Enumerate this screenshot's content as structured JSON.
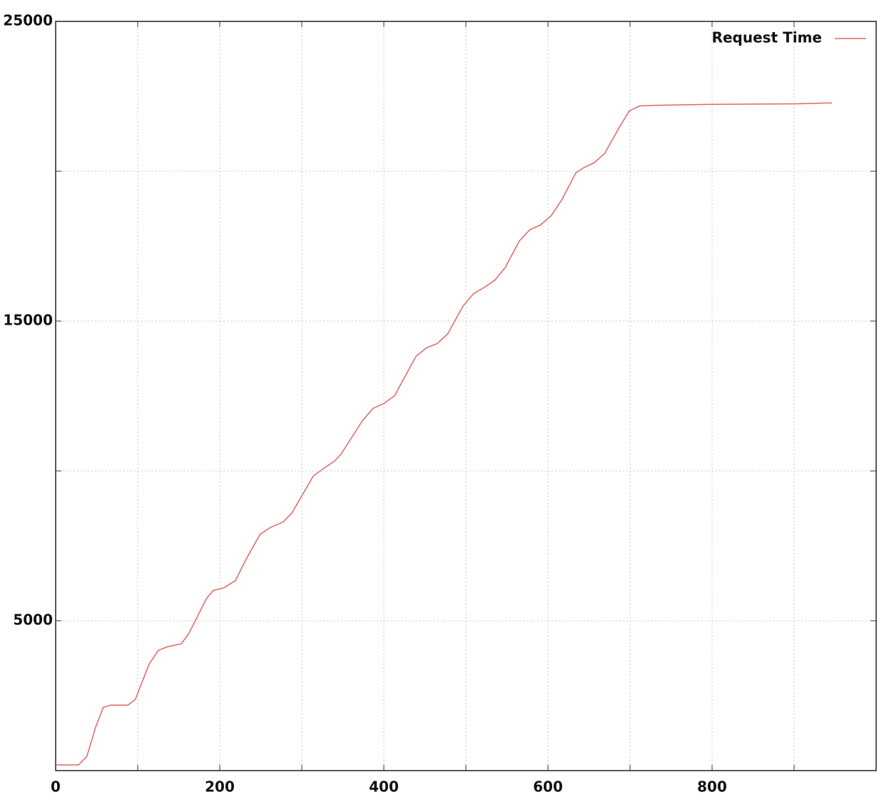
{
  "chart_data": {
    "type": "line",
    "x": [
      0,
      28,
      38,
      49,
      58,
      67,
      88,
      97,
      114,
      125,
      136,
      153,
      162,
      184,
      192,
      205,
      219,
      232,
      249,
      262,
      277,
      288,
      314,
      327,
      340,
      348,
      374,
      387,
      400,
      413,
      439,
      452,
      465,
      478,
      496,
      509,
      522,
      535,
      548,
      565,
      578,
      591,
      604,
      617,
      634,
      643,
      656,
      669,
      686,
      699,
      712,
      730,
      799,
      903,
      946
    ],
    "series": [
      {
        "name": "Request Time",
        "color": "#e06666",
        "values": [
          190,
          190,
          475,
          1470,
          2110,
          2185,
          2185,
          2375,
          3560,
          4010,
          4130,
          4230,
          4560,
          5750,
          6010,
          6100,
          6340,
          7050,
          7880,
          8120,
          8290,
          8600,
          9830,
          10090,
          10330,
          10570,
          11680,
          12090,
          12250,
          12510,
          13820,
          14110,
          14250,
          14580,
          15480,
          15910,
          16120,
          16360,
          16790,
          17670,
          18050,
          18210,
          18520,
          19050,
          19950,
          20110,
          20280,
          20590,
          21420,
          22010,
          22180,
          22200,
          22230,
          22250,
          22280
        ]
      }
    ],
    "xlim": [
      0,
      1000
    ],
    "xticks": [
      0,
      {
        "value": 100,
        "label": null
      },
      200,
      {
        "value": 300,
        "label": null
      },
      400,
      {
        "value": 500,
        "label": null
      },
      600,
      {
        "value": 700,
        "label": null
      },
      800,
      {
        "value": 900,
        "label": null
      }
    ],
    "ylim": [
      0,
      25000
    ],
    "yticks": [
      5000,
      {
        "value": 10000,
        "label": null
      },
      15000,
      {
        "value": 20000,
        "label": null
      },
      25000
    ],
    "grid": true,
    "legend": "upper right"
  }
}
